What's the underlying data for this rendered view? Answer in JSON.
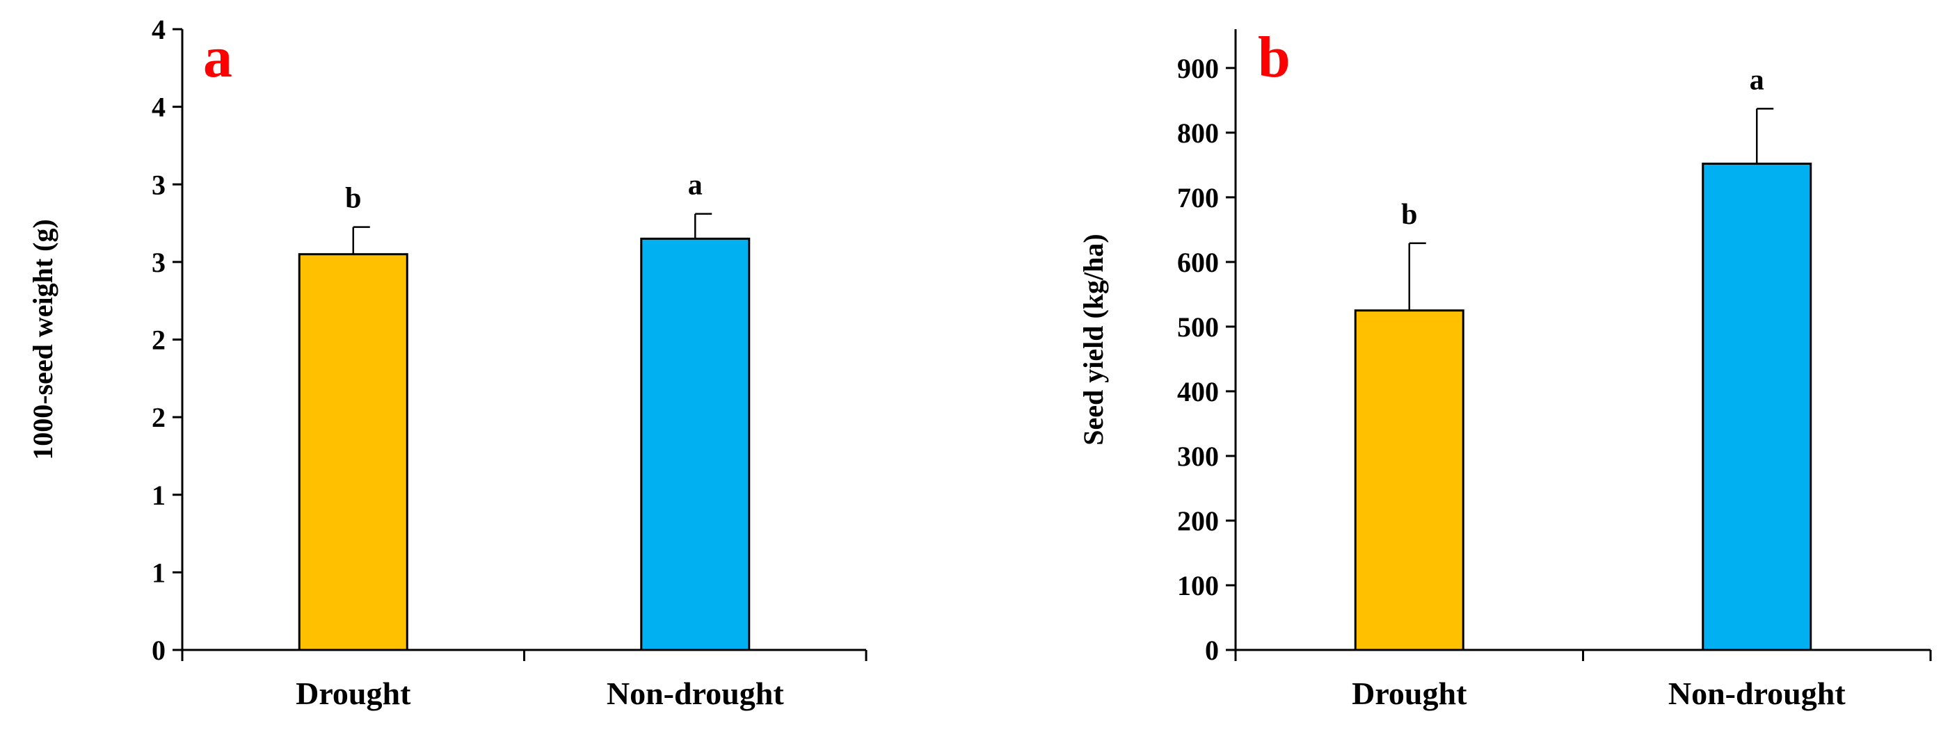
{
  "chart_data": [
    {
      "type": "bar",
      "panel_label": "a",
      "title": "",
      "xlabel": "",
      "ylabel": "1000-seed weight (g)",
      "categories": [
        "Drought",
        "Non-drought"
      ],
      "values": [
        2.55,
        2.65
      ],
      "errors": [
        0.175,
        0.16
      ],
      "significance": [
        "b",
        "a"
      ],
      "yticks": [
        0,
        0.5,
        1,
        1.5,
        2,
        2.5,
        3,
        3.5,
        4
      ],
      "ytick_labels": [
        "0",
        "1",
        "1",
        "2",
        "2",
        "3",
        "3",
        "4",
        "4"
      ],
      "ylim": [
        0,
        4
      ],
      "grid": false,
      "legend": "none",
      "colors": [
        "#FFC000",
        "#00B0F0"
      ]
    },
    {
      "type": "bar",
      "panel_label": "b",
      "title": "",
      "xlabel": "",
      "ylabel": "Seed yield (kg/ha)",
      "categories": [
        "Drought",
        "Non-drought"
      ],
      "values": [
        525,
        752
      ],
      "errors": [
        104,
        85
      ],
      "significance": [
        "b",
        "a"
      ],
      "yticks": [
        0,
        100,
        200,
        300,
        400,
        500,
        600,
        700,
        800,
        900
      ],
      "ytick_labels": [
        "0",
        "100",
        "200",
        "300",
        "400",
        "500",
        "600",
        "700",
        "800",
        "900"
      ],
      "ylim": [
        0,
        960
      ],
      "grid": false,
      "legend": "none",
      "colors": [
        "#FFC000",
        "#00B0F0"
      ]
    }
  ]
}
